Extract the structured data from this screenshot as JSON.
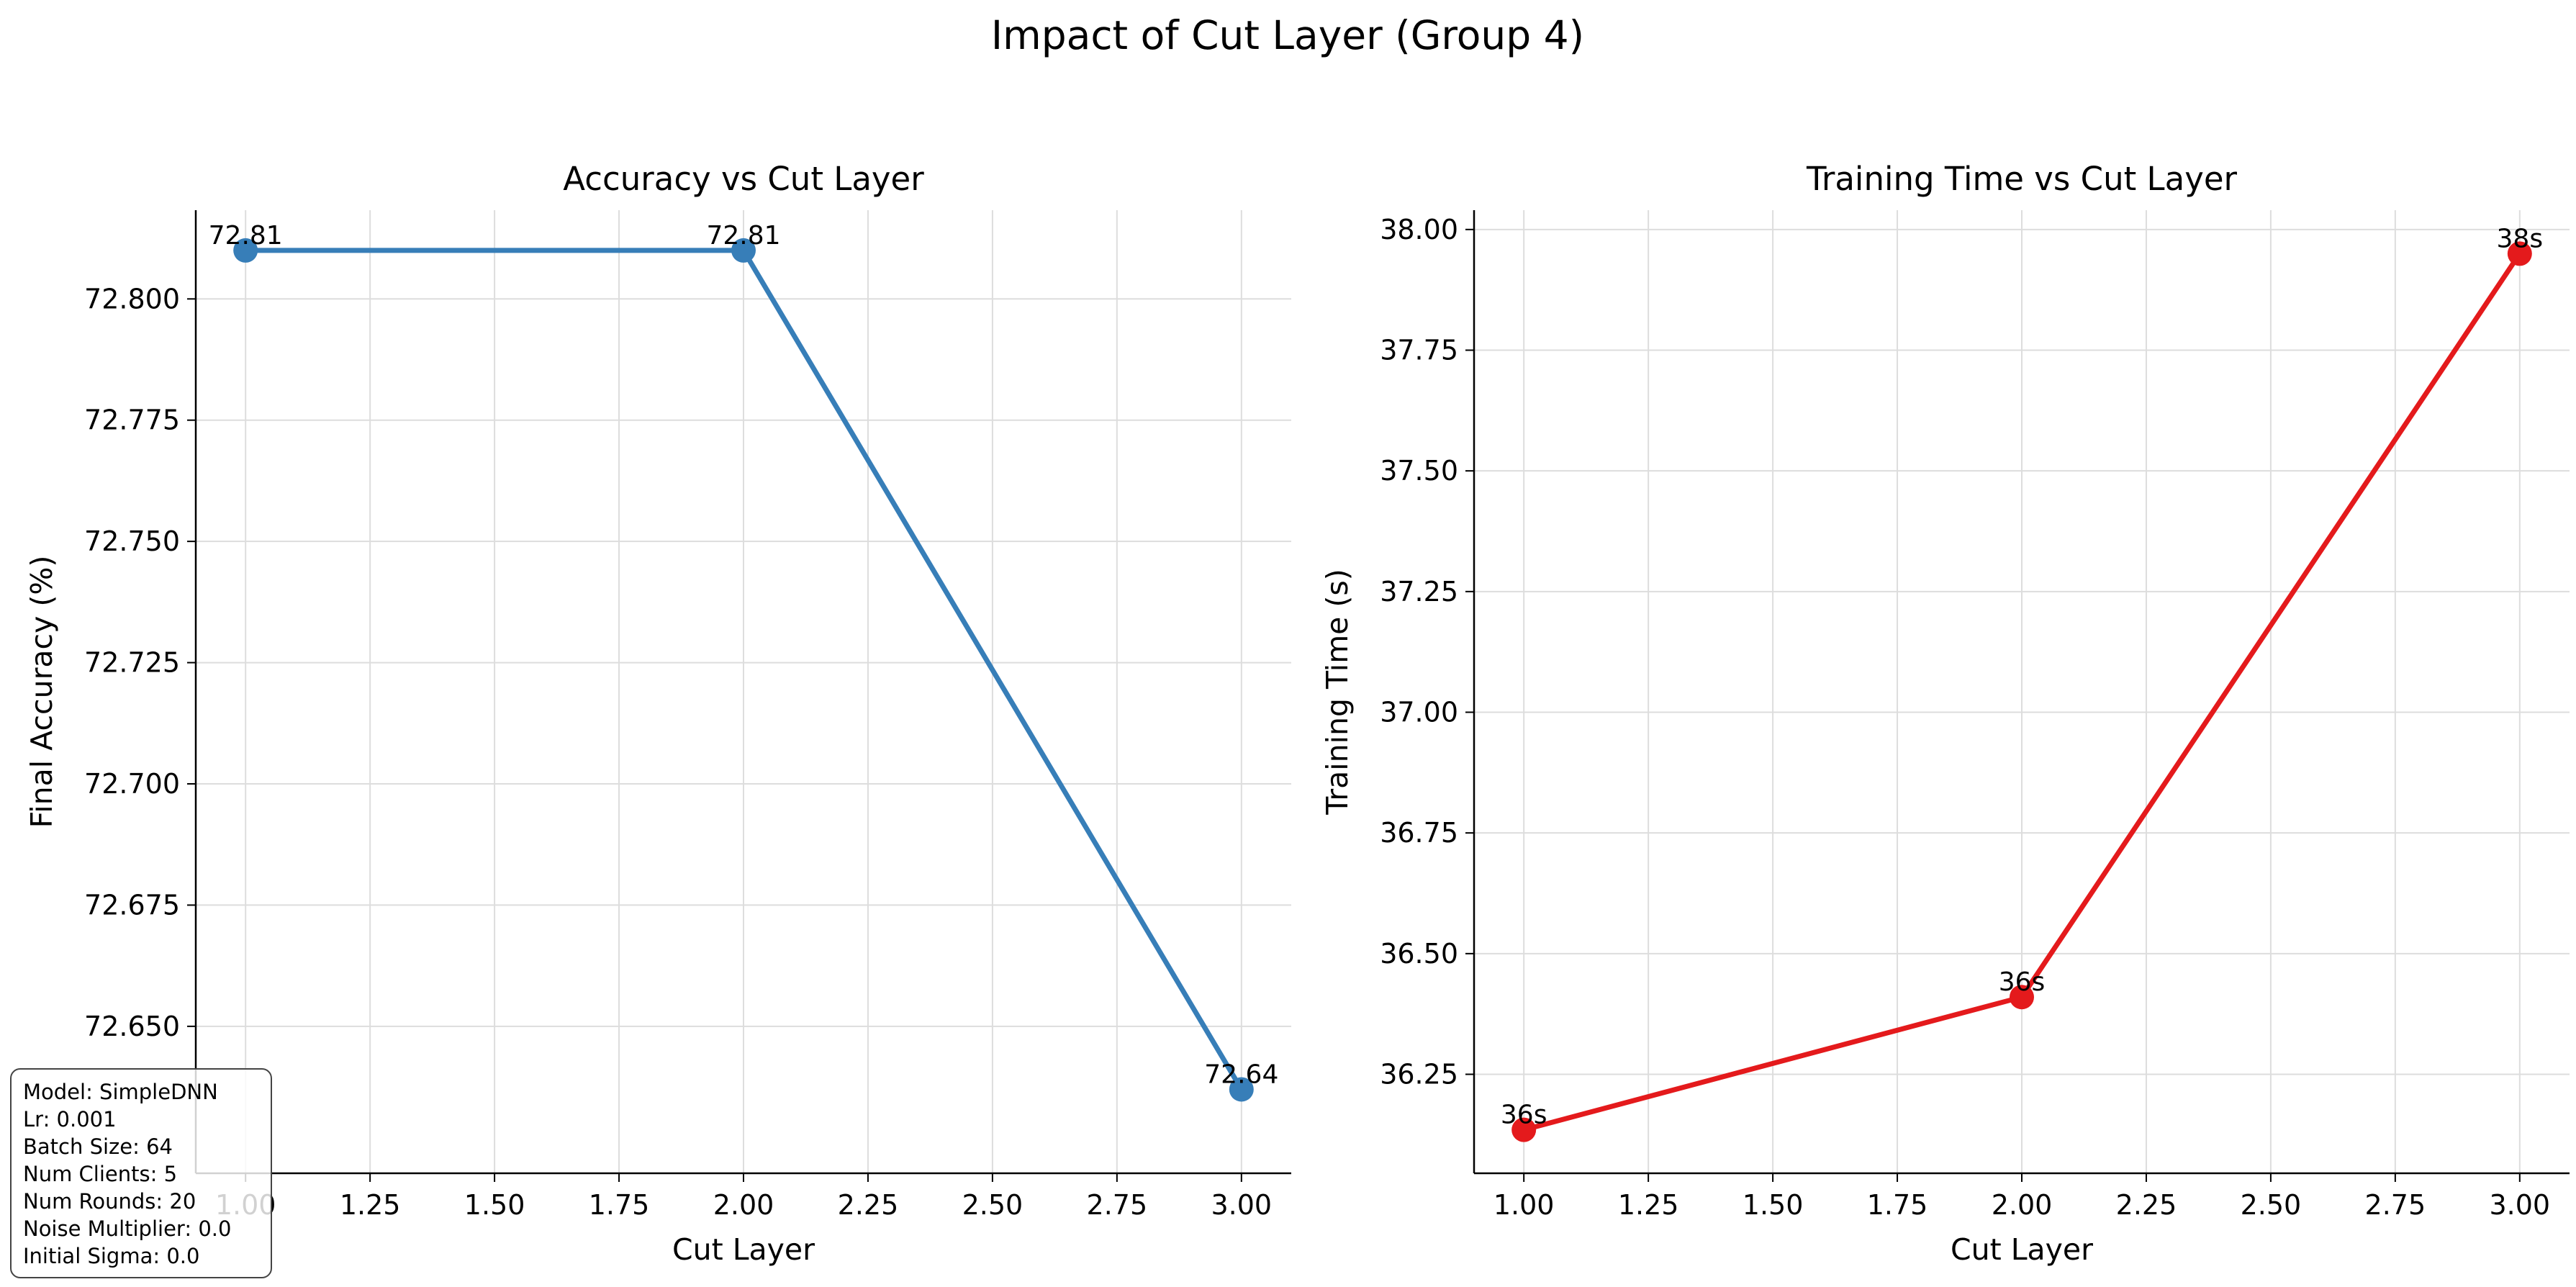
{
  "figure": {
    "suptitle": "Impact of Cut Layer (Group 4)"
  },
  "chart_data": [
    {
      "type": "line",
      "title": "Accuracy vs Cut Layer",
      "xlabel": "Cut Layer",
      "ylabel": "Final Accuracy (%)",
      "x": [
        1.0,
        2.0,
        3.0
      ],
      "values": [
        72.81,
        72.81,
        72.637
      ],
      "point_labels": [
        "72.81",
        "72.81",
        "72.64"
      ],
      "xlim": [
        0.9,
        3.1
      ],
      "ylim": [
        72.6197,
        72.8183
      ],
      "xticks": [
        1.0,
        1.25,
        1.5,
        1.75,
        2.0,
        2.25,
        2.5,
        2.75,
        3.0
      ],
      "xtick_labels": [
        "1.00",
        "1.25",
        "1.50",
        "1.75",
        "2.00",
        "2.25",
        "2.50",
        "2.75",
        "3.00"
      ],
      "yticks": [
        72.65,
        72.675,
        72.7,
        72.725,
        72.75,
        72.775,
        72.8
      ],
      "ytick_labels": [
        "72.650",
        "72.675",
        "72.700",
        "72.725",
        "72.750",
        "72.775",
        "72.800"
      ],
      "color": "#377eb8",
      "grid": true
    },
    {
      "type": "line",
      "title": "Training Time vs Cut Layer",
      "xlabel": "Cut Layer",
      "ylabel": "Training Time (s)",
      "x": [
        1.0,
        2.0,
        3.0
      ],
      "values": [
        36.135,
        36.41,
        37.95
      ],
      "point_labels": [
        "36s",
        "36s",
        "38s"
      ],
      "xlim": [
        0.9,
        3.1
      ],
      "ylim": [
        36.045,
        38.04
      ],
      "xticks": [
        1.0,
        1.25,
        1.5,
        1.75,
        2.0,
        2.25,
        2.5,
        2.75,
        3.0
      ],
      "xtick_labels": [
        "1.00",
        "1.25",
        "1.50",
        "1.75",
        "2.00",
        "2.25",
        "2.50",
        "2.75",
        "3.00"
      ],
      "yticks": [
        36.25,
        36.5,
        36.75,
        37.0,
        37.25,
        37.5,
        37.75,
        38.0
      ],
      "ytick_labels": [
        "36.25",
        "36.50",
        "36.75",
        "37.00",
        "37.25",
        "37.50",
        "37.75",
        "38.00"
      ],
      "color": "#e41a1c",
      "grid": true
    }
  ],
  "params": [
    "Model: SimpleDNN",
    "Lr: 0.001",
    "Batch Size: 64",
    "Num Clients: 5",
    "Num Rounds: 20",
    "Noise Multiplier: 0.0",
    "Initial Sigma: 0.0"
  ]
}
